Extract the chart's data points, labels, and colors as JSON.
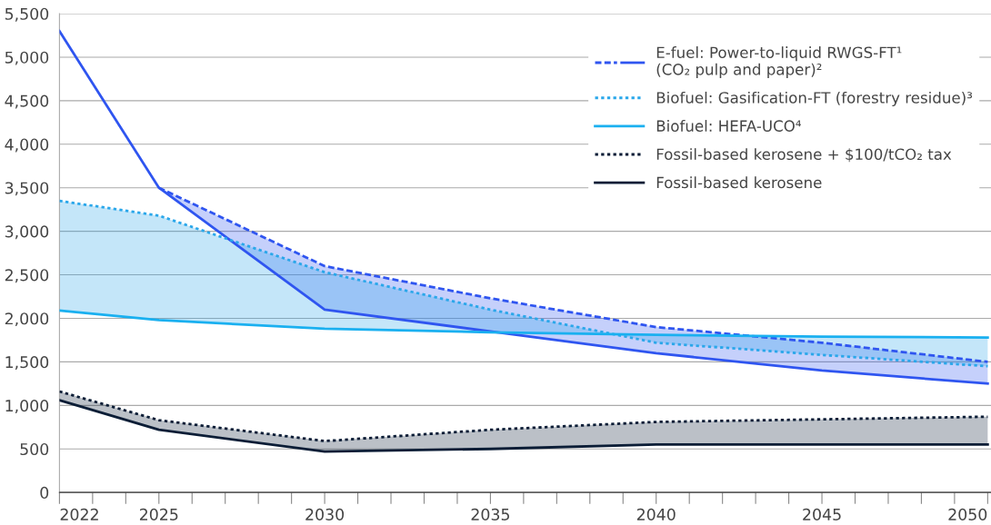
{
  "chart_data": {
    "type": "line",
    "x": [
      2022,
      2025,
      2030,
      2035,
      2040,
      2045,
      2050
    ],
    "xlim": [
      2022,
      2050.1
    ],
    "xticks": [
      2022,
      {
        "value": 2023,
        "label": null
      },
      {
        "value": 2024,
        "label": null
      },
      2025,
      {
        "value": 2026,
        "label": null
      },
      {
        "value": 2027,
        "label": null
      },
      {
        "value": 2028,
        "label": null
      },
      {
        "value": 2029,
        "label": null
      },
      2030,
      {
        "value": 2031,
        "label": null
      },
      {
        "value": 2032,
        "label": null
      },
      {
        "value": 2033,
        "label": null
      },
      {
        "value": 2034,
        "label": null
      },
      2035,
      {
        "value": 2036,
        "label": null
      },
      {
        "value": 2037,
        "label": null
      },
      {
        "value": 2038,
        "label": null
      },
      {
        "value": 2039,
        "label": null
      },
      2040,
      {
        "value": 2041,
        "label": null
      },
      {
        "value": 2042,
        "label": null
      },
      {
        "value": 2043,
        "label": null
      },
      {
        "value": 2044,
        "label": null
      },
      2045,
      {
        "value": 2046,
        "label": null
      },
      {
        "value": 2047,
        "label": null
      },
      {
        "value": 2048,
        "label": null
      },
      {
        "value": 2049,
        "label": null
      },
      2050
    ],
    "ylim": [
      0,
      5500
    ],
    "yticks": [
      0,
      {
        "value": 500,
        "label": "500"
      },
      {
        "value": 1000,
        "label": "1,000"
      },
      {
        "value": 1500,
        "label": "1,500"
      },
      {
        "value": 2000,
        "label": "2,000"
      },
      {
        "value": 2500,
        "label": "2,500"
      },
      {
        "value": 3000,
        "label": "3,000"
      },
      {
        "value": 3500,
        "label": "3,500"
      },
      {
        "value": 4000,
        "label": "4,000"
      },
      {
        "value": 4500,
        "label": "4,500"
      },
      {
        "value": 5000,
        "label": "5,000"
      },
      {
        "value": 5500,
        "label": "5,500"
      }
    ],
    "grid": "y",
    "legend": "top right",
    "series": [
      {
        "name": "E-fuel: Power-to-liquid RWGS-FT¹\n(CO₂ pulp and paper)²",
        "color": "#2f55f0",
        "line_style": "dashed",
        "values": [
          null,
          3500,
          2600,
          2230,
          1900,
          1720,
          1500
        ],
        "lower": [
          null,
          3500,
          2100,
          1850,
          1600,
          1400,
          1250
        ],
        "upper": [
          null,
          3500,
          2600,
          2230,
          1900,
          1720,
          1500
        ]
      },
      {
        "color": "#2f55f0",
        "line_style": "solid",
        "values": [
          5300,
          3500,
          2100,
          1850,
          1600,
          1400,
          1250
        ]
      },
      {
        "name": "Biofuel: Gasification-FT (forestry residue)³",
        "color": "#2aa7ea",
        "line_style": "dotted",
        "values": [
          3350,
          3180,
          2530,
          2100,
          1720,
          1580,
          1450
        ],
        "lower": [
          2090,
          1980,
          1880,
          1840,
          1810,
          1790,
          1780
        ],
        "upper": [
          3350,
          3180,
          2530,
          2100,
          1720,
          1580,
          1450
        ]
      },
      {
        "name": "Biofuel: HEFA-UCO⁴",
        "color": "#1ab0f0",
        "line_style": "solid",
        "values": [
          2090,
          1980,
          1880,
          1840,
          1810,
          1790,
          1780
        ]
      },
      {
        "name": "Fossil-based kerosene + $100/tCO₂ tax",
        "color": "#0b1d36",
        "line_style": "dotted",
        "values": [
          1160,
          830,
          590,
          720,
          810,
          840,
          870
        ],
        "lower": [
          1060,
          720,
          470,
          500,
          550,
          550,
          550
        ],
        "upper": [
          1160,
          830,
          590,
          720,
          810,
          840,
          870
        ]
      },
      {
        "name": "Fossil-based kerosene",
        "color": "#0b1d36",
        "line_style": "solid",
        "values": [
          1060,
          720,
          470,
          500,
          550,
          550,
          550
        ]
      }
    ]
  }
}
